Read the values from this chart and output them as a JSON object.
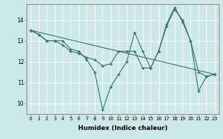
{
  "title": "",
  "xlabel": "Humidex (Indice chaleur)",
  "ylabel": "",
  "bg_color": "#cce8e8",
  "grid_color": "#ffffff",
  "line_color": "#2e6e68",
  "series": [
    {
      "x": [
        0,
        1,
        2,
        3,
        4,
        5,
        6,
        7,
        8,
        9,
        10,
        11,
        12,
        13,
        14,
        15,
        16,
        17,
        18,
        19,
        20,
        21,
        22,
        23
      ],
      "y": [
        13.5,
        13.3,
        13.0,
        13.0,
        13.0,
        12.6,
        12.5,
        12.1,
        11.5,
        9.7,
        10.8,
        11.4,
        12.0,
        13.4,
        12.5,
        11.7,
        12.5,
        13.7,
        14.5,
        14.0,
        13.0,
        10.6,
        11.3,
        11.4
      ]
    },
    {
      "x": [
        0,
        1,
        2,
        3,
        4,
        5,
        6,
        7,
        8,
        9,
        10,
        11,
        12,
        13,
        14,
        15,
        16,
        17,
        18,
        19,
        20,
        21,
        22,
        23
      ],
      "y": [
        13.5,
        13.3,
        13.0,
        13.0,
        12.8,
        12.5,
        12.4,
        12.2,
        12.1,
        11.8,
        11.9,
        12.5,
        12.5,
        12.5,
        11.7,
        11.7,
        12.5,
        13.8,
        14.6,
        13.9,
        13.0,
        11.5,
        11.3,
        11.4
      ]
    },
    {
      "x": [
        0,
        23
      ],
      "y": [
        13.5,
        11.4
      ]
    }
  ],
  "xlim": [
    -0.5,
    23.5
  ],
  "ylim": [
    9.5,
    14.75
  ],
  "yticks": [
    10,
    11,
    12,
    13,
    14
  ],
  "xticks": [
    0,
    1,
    2,
    3,
    4,
    5,
    6,
    7,
    8,
    9,
    10,
    11,
    12,
    13,
    14,
    15,
    16,
    17,
    18,
    19,
    20,
    21,
    22,
    23
  ],
  "figsize": [
    3.2,
    2.0
  ],
  "dpi": 100,
  "tick_fontsize": 5.0,
  "xlabel_fontsize": 6.5,
  "ytick_fontsize": 5.5
}
